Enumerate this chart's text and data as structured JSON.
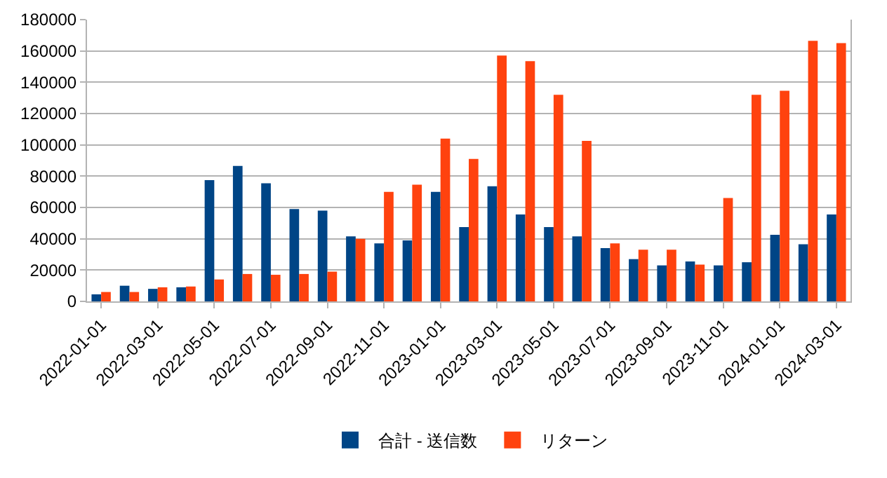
{
  "chart_data": {
    "type": "bar",
    "categories": [
      "2022-01-01",
      null,
      "2022-03-01",
      null,
      "2022-05-01",
      null,
      "2022-07-01",
      null,
      "2022-09-01",
      null,
      "2022-11-01",
      null,
      "2023-01-01",
      null,
      "2023-03-01",
      null,
      "2023-05-01",
      null,
      "2023-07-01",
      null,
      "2023-09-01",
      null,
      "2023-11-01",
      null,
      "2024-01-01",
      null,
      "2024-03-01"
    ],
    "series": [
      {
        "name": "合計 - 送信数",
        "color": "#004586",
        "values": [
          4500,
          10000,
          8000,
          9000,
          77500,
          86500,
          75500,
          59000,
          58000,
          41500,
          37000,
          39000,
          70000,
          47500,
          73500,
          55500,
          47500,
          41500,
          34000,
          27000,
          23000,
          25500,
          23000,
          25000,
          42500,
          36500,
          55500
        ]
      },
      {
        "name": "リターン",
        "color": "#ff420e",
        "values": [
          6000,
          6000,
          9000,
          9500,
          14000,
          17500,
          17000,
          17500,
          19000,
          40000,
          70000,
          74500,
          104000,
          91000,
          157000,
          153500,
          132000,
          102500,
          37000,
          33000,
          33000,
          23500,
          66000,
          132000,
          134500,
          166500,
          165000
        ]
      }
    ],
    "ylim": [
      0,
      180000
    ],
    "yticks": [
      0,
      20000,
      40000,
      60000,
      80000,
      100000,
      120000,
      140000,
      160000,
      180000
    ],
    "grid": "y",
    "legend": "bottom"
  }
}
